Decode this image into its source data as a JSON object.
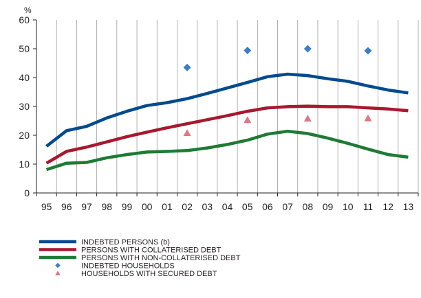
{
  "chart_data": {
    "type": "line",
    "title": "",
    "xlabel": "",
    "ylabel": "%",
    "ylim": [
      0,
      60
    ],
    "yticks": [
      0,
      10,
      20,
      30,
      40,
      50,
      60
    ],
    "categories": [
      "95",
      "96",
      "97",
      "98",
      "99",
      "00",
      "01",
      "02",
      "03",
      "04",
      "05",
      "06",
      "07",
      "08",
      "09",
      "10",
      "11",
      "12",
      "13"
    ],
    "grid": "vertical",
    "legend_position": "bottom",
    "colors": {
      "indebted_persons": "#004a8f",
      "collateral": "#a6192e",
      "non_collateral": "#1e7b34",
      "households": "#3a7dc9",
      "secured": "#e07684",
      "grid": "#9d9d9c",
      "axis": "#231f20"
    },
    "series": [
      {
        "name": "INDEBTED PERSONS (b)",
        "kind": "line",
        "color_key": "indebted_persons",
        "values": [
          16.2,
          21.6,
          23.1,
          26.0,
          28.3,
          30.3,
          31.3,
          32.7,
          34.5,
          36.4,
          38.3,
          40.3,
          41.2,
          40.7,
          39.6,
          38.7,
          37.1,
          35.7,
          34.7
        ]
      },
      {
        "name": "PERSONS WITH COLLATERISED DEBT",
        "kind": "line",
        "color_key": "collateral",
        "values": [
          10.3,
          14.4,
          15.9,
          17.7,
          19.5,
          21.1,
          22.6,
          24.0,
          25.4,
          26.8,
          28.3,
          29.5,
          29.9,
          30.1,
          29.9,
          29.9,
          29.5,
          29.1,
          28.5
        ]
      },
      {
        "name": "PERSONS WITH NON-COLLATERISED DEBT",
        "kind": "line",
        "color_key": "non_collateral",
        "values": [
          8.1,
          10.3,
          10.6,
          12.2,
          13.3,
          14.2,
          14.4,
          14.7,
          15.6,
          16.8,
          18.3,
          20.4,
          21.4,
          20.6,
          19.0,
          17.2,
          15.2,
          13.3,
          12.4
        ]
      },
      {
        "name": "INDEBTED HOUSEHOLDS",
        "kind": "marker",
        "shape": "diamond",
        "color_key": "households",
        "points": [
          {
            "x": "02",
            "y": 43.5
          },
          {
            "x": "05",
            "y": 49.4
          },
          {
            "x": "08",
            "y": 50.0
          },
          {
            "x": "11",
            "y": 49.3
          }
        ]
      },
      {
        "name": "HOUSEHOLDS WITH SECURED DEBT",
        "kind": "marker",
        "shape": "triangle",
        "color_key": "secured",
        "points": [
          {
            "x": "02",
            "y": 20.8
          },
          {
            "x": "05",
            "y": 25.3
          },
          {
            "x": "08",
            "y": 25.8
          },
          {
            "x": "11",
            "y": 25.9
          }
        ]
      }
    ]
  }
}
